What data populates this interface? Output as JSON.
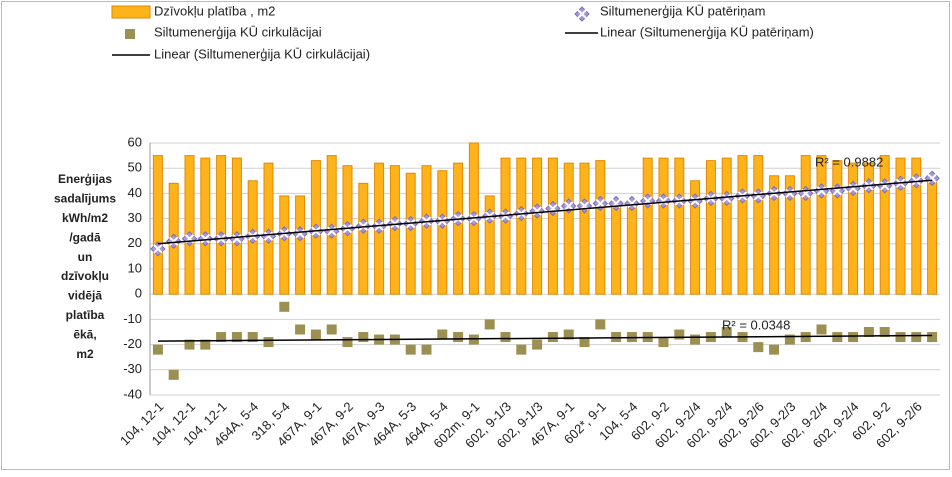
{
  "chart_data": {
    "type": "bar",
    "ylabel": [
      "Enerģijas",
      "sadalījums",
      "kWh/m2",
      "/gadā",
      "un",
      "dzīvokļu",
      "vidējā",
      "platība",
      "ēkā,",
      "m2"
    ],
    "categories": [
      "104, 12-1",
      null,
      "104, 12-1",
      null,
      "104, 12-1",
      null,
      "464A, 5-4",
      null,
      "318, 5-4",
      null,
      "467A, 9-1",
      null,
      "467A, 9-2",
      null,
      "467A, 9-3",
      null,
      "464A, 5-3",
      null,
      "464A, 5-4",
      null,
      "602m, 9-1",
      null,
      "602, 9-1/3",
      null,
      "602, 9-1/3",
      null,
      "467A, 9-1",
      null,
      "602*, 9-1",
      null,
      "104, 5-4",
      null,
      "602, 9-2",
      null,
      "602, 9-2/4",
      null,
      "602, 9-2/4",
      null,
      "602, 9-2/6",
      null,
      "602, 9-2/3",
      null,
      "602, 9-2/4",
      null,
      "602, 9-2/4",
      null,
      "602, 9-2",
      null,
      "602, 9-2/6",
      null
    ],
    "series": [
      {
        "name": "Dzīvokļu platība , m2",
        "type": "bar",
        "color": "#ffb31a",
        "values": [
          55,
          44,
          55,
          54,
          55,
          54,
          45,
          52,
          39,
          39,
          53,
          55,
          51,
          44,
          52,
          51,
          48,
          51,
          49,
          52,
          60,
          39,
          54,
          54,
          54,
          54,
          52,
          52,
          53,
          37,
          37,
          54,
          54,
          54,
          45,
          53,
          54,
          55,
          55,
          47,
          47,
          55,
          55,
          53,
          52,
          52,
          55,
          54,
          54,
          47
        ]
      },
      {
        "name": "Siltumenerģija KŪ patēriņam",
        "type": "scatter",
        "color": "#a898d8",
        "values": [
          18,
          21,
          22,
          22,
          22,
          22,
          23,
          23,
          24,
          24,
          25,
          25,
          26,
          27,
          27,
          28,
          28,
          29,
          29,
          30,
          30,
          31,
          31,
          32,
          33,
          34,
          35,
          35,
          36,
          36,
          36,
          37,
          37,
          37,
          37,
          38,
          38,
          39,
          39,
          40,
          40,
          40,
          41,
          41,
          42,
          43,
          43,
          44,
          45,
          46
        ]
      },
      {
        "name": "Siltumenerģija KŪ cirkulācijai",
        "type": "scatter",
        "color": "#9c8f52",
        "values": [
          -22,
          -32,
          -20,
          -20,
          -17,
          -17,
          -17,
          -19,
          -5,
          -14,
          -16,
          -14,
          -19,
          -17,
          -18,
          -18,
          -22,
          -22,
          -16,
          -17,
          -18,
          -12,
          -17,
          -22,
          -20,
          -17,
          -16,
          -19,
          -12,
          -17,
          -17,
          -17,
          -19,
          -16,
          -18,
          -17,
          -15,
          -17,
          -21,
          -22,
          -18,
          -17,
          -14,
          -17,
          -17,
          -15,
          -15,
          -17,
          -17,
          -17
        ]
      }
    ],
    "trendlines": [
      {
        "name": "Linear (Siltumenerģija KŪ patēriņam)",
        "series": 1,
        "r2_label": "R² = 0.9882"
      },
      {
        "name": "Linear (Siltumenerģija KŪ cirkulācijai)",
        "series": 2,
        "r2_label": "R² = 0.0348"
      }
    ],
    "ylim": [
      -40,
      60
    ],
    "yticks": [
      -40,
      -30,
      -20,
      -10,
      0,
      10,
      20,
      30,
      40,
      50,
      60
    ],
    "grid": true
  }
}
